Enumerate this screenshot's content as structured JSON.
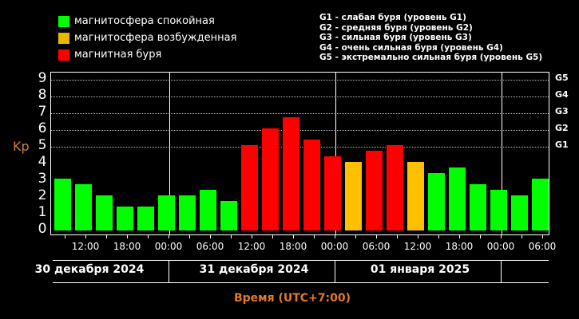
{
  "legend": {
    "items": [
      {
        "label": "магнитосфера спокойная",
        "color": "#00ff00"
      },
      {
        "label": "магнитосфера возбужденная",
        "color": "#e8b800"
      },
      {
        "label": "магнитная буря",
        "color": "#ff0000"
      }
    ]
  },
  "g_legend": [
    "G1 - слабая буря (уровень G1)",
    "G2 - средняя буря (уровень G2)",
    "G3 - сильная буря (уровень G3)",
    "G4 - очень сильная буря (уровень G4)",
    "G5 - экстремально сильная буря (уровень G5)"
  ],
  "axis": {
    "ylabel": "Kp",
    "yticks": [
      "0",
      "1",
      "2",
      "3",
      "4",
      "5",
      "6",
      "7",
      "8",
      "9"
    ],
    "g_ticks": [
      "G1",
      "G2",
      "G3",
      "G4",
      "G5"
    ],
    "xticks": [
      "12:00",
      "18:00",
      "00:00",
      "06:00",
      "12:00",
      "18:00",
      "00:00",
      "06:00",
      "12:00",
      "18:00",
      "00:00",
      "06:00"
    ],
    "dates": [
      "30 декабря 2024",
      "31 декабря 2024",
      "01 января 2025"
    ],
    "xlabel": "Время (UTC+7:00)"
  },
  "colors": {
    "quiet": "#00ff00",
    "active": "#ffc000",
    "storm": "#ff0000",
    "axis_label": "#c8803c",
    "time_label": "#e07a2a"
  },
  "chart_data": {
    "type": "bar",
    "title": "",
    "xlabel": "Время (UTC+7:00)",
    "ylabel": "Kp",
    "ylim": [
      0,
      9
    ],
    "grid": true,
    "categories": [
      "30.12 09:00",
      "30.12 12:00",
      "30.12 15:00",
      "30.12 18:00",
      "30.12 21:00",
      "31.12 00:00",
      "31.12 03:00",
      "31.12 06:00",
      "31.12 09:00",
      "31.12 12:00",
      "31.12 15:00",
      "31.12 18:00",
      "31.12 21:00",
      "01.01 00:00",
      "01.01 03:00",
      "01.01 06:00",
      "01.01 09:00",
      "01.01 12:00",
      "01.01 15:00",
      "01.01 18:00",
      "01.01 21:00",
      "02.01 00:00",
      "02.01 03:00",
      "02.01 06:00"
    ],
    "values": [
      3.0,
      2.67,
      2.0,
      1.33,
      1.33,
      2.0,
      2.0,
      2.33,
      1.67,
      5.0,
      6.0,
      6.67,
      5.33,
      4.33,
      4.0,
      4.67,
      5.0,
      4.0,
      3.33,
      3.67,
      2.67,
      2.33,
      2.0,
      3.0
    ],
    "status": [
      "quiet",
      "quiet",
      "quiet",
      "quiet",
      "quiet",
      "quiet",
      "quiet",
      "quiet",
      "quiet",
      "storm",
      "storm",
      "storm",
      "storm",
      "storm",
      "active",
      "storm",
      "storm",
      "active",
      "quiet",
      "quiet",
      "quiet",
      "quiet",
      "quiet",
      "quiet"
    ],
    "legend": [
      "магнитосфера спокойная",
      "магнитосфера возбужденная",
      "магнитная буря"
    ],
    "secondary_axis": {
      "G1": 5,
      "G2": 6,
      "G3": 7,
      "G4": 8,
      "G5": 9
    }
  }
}
